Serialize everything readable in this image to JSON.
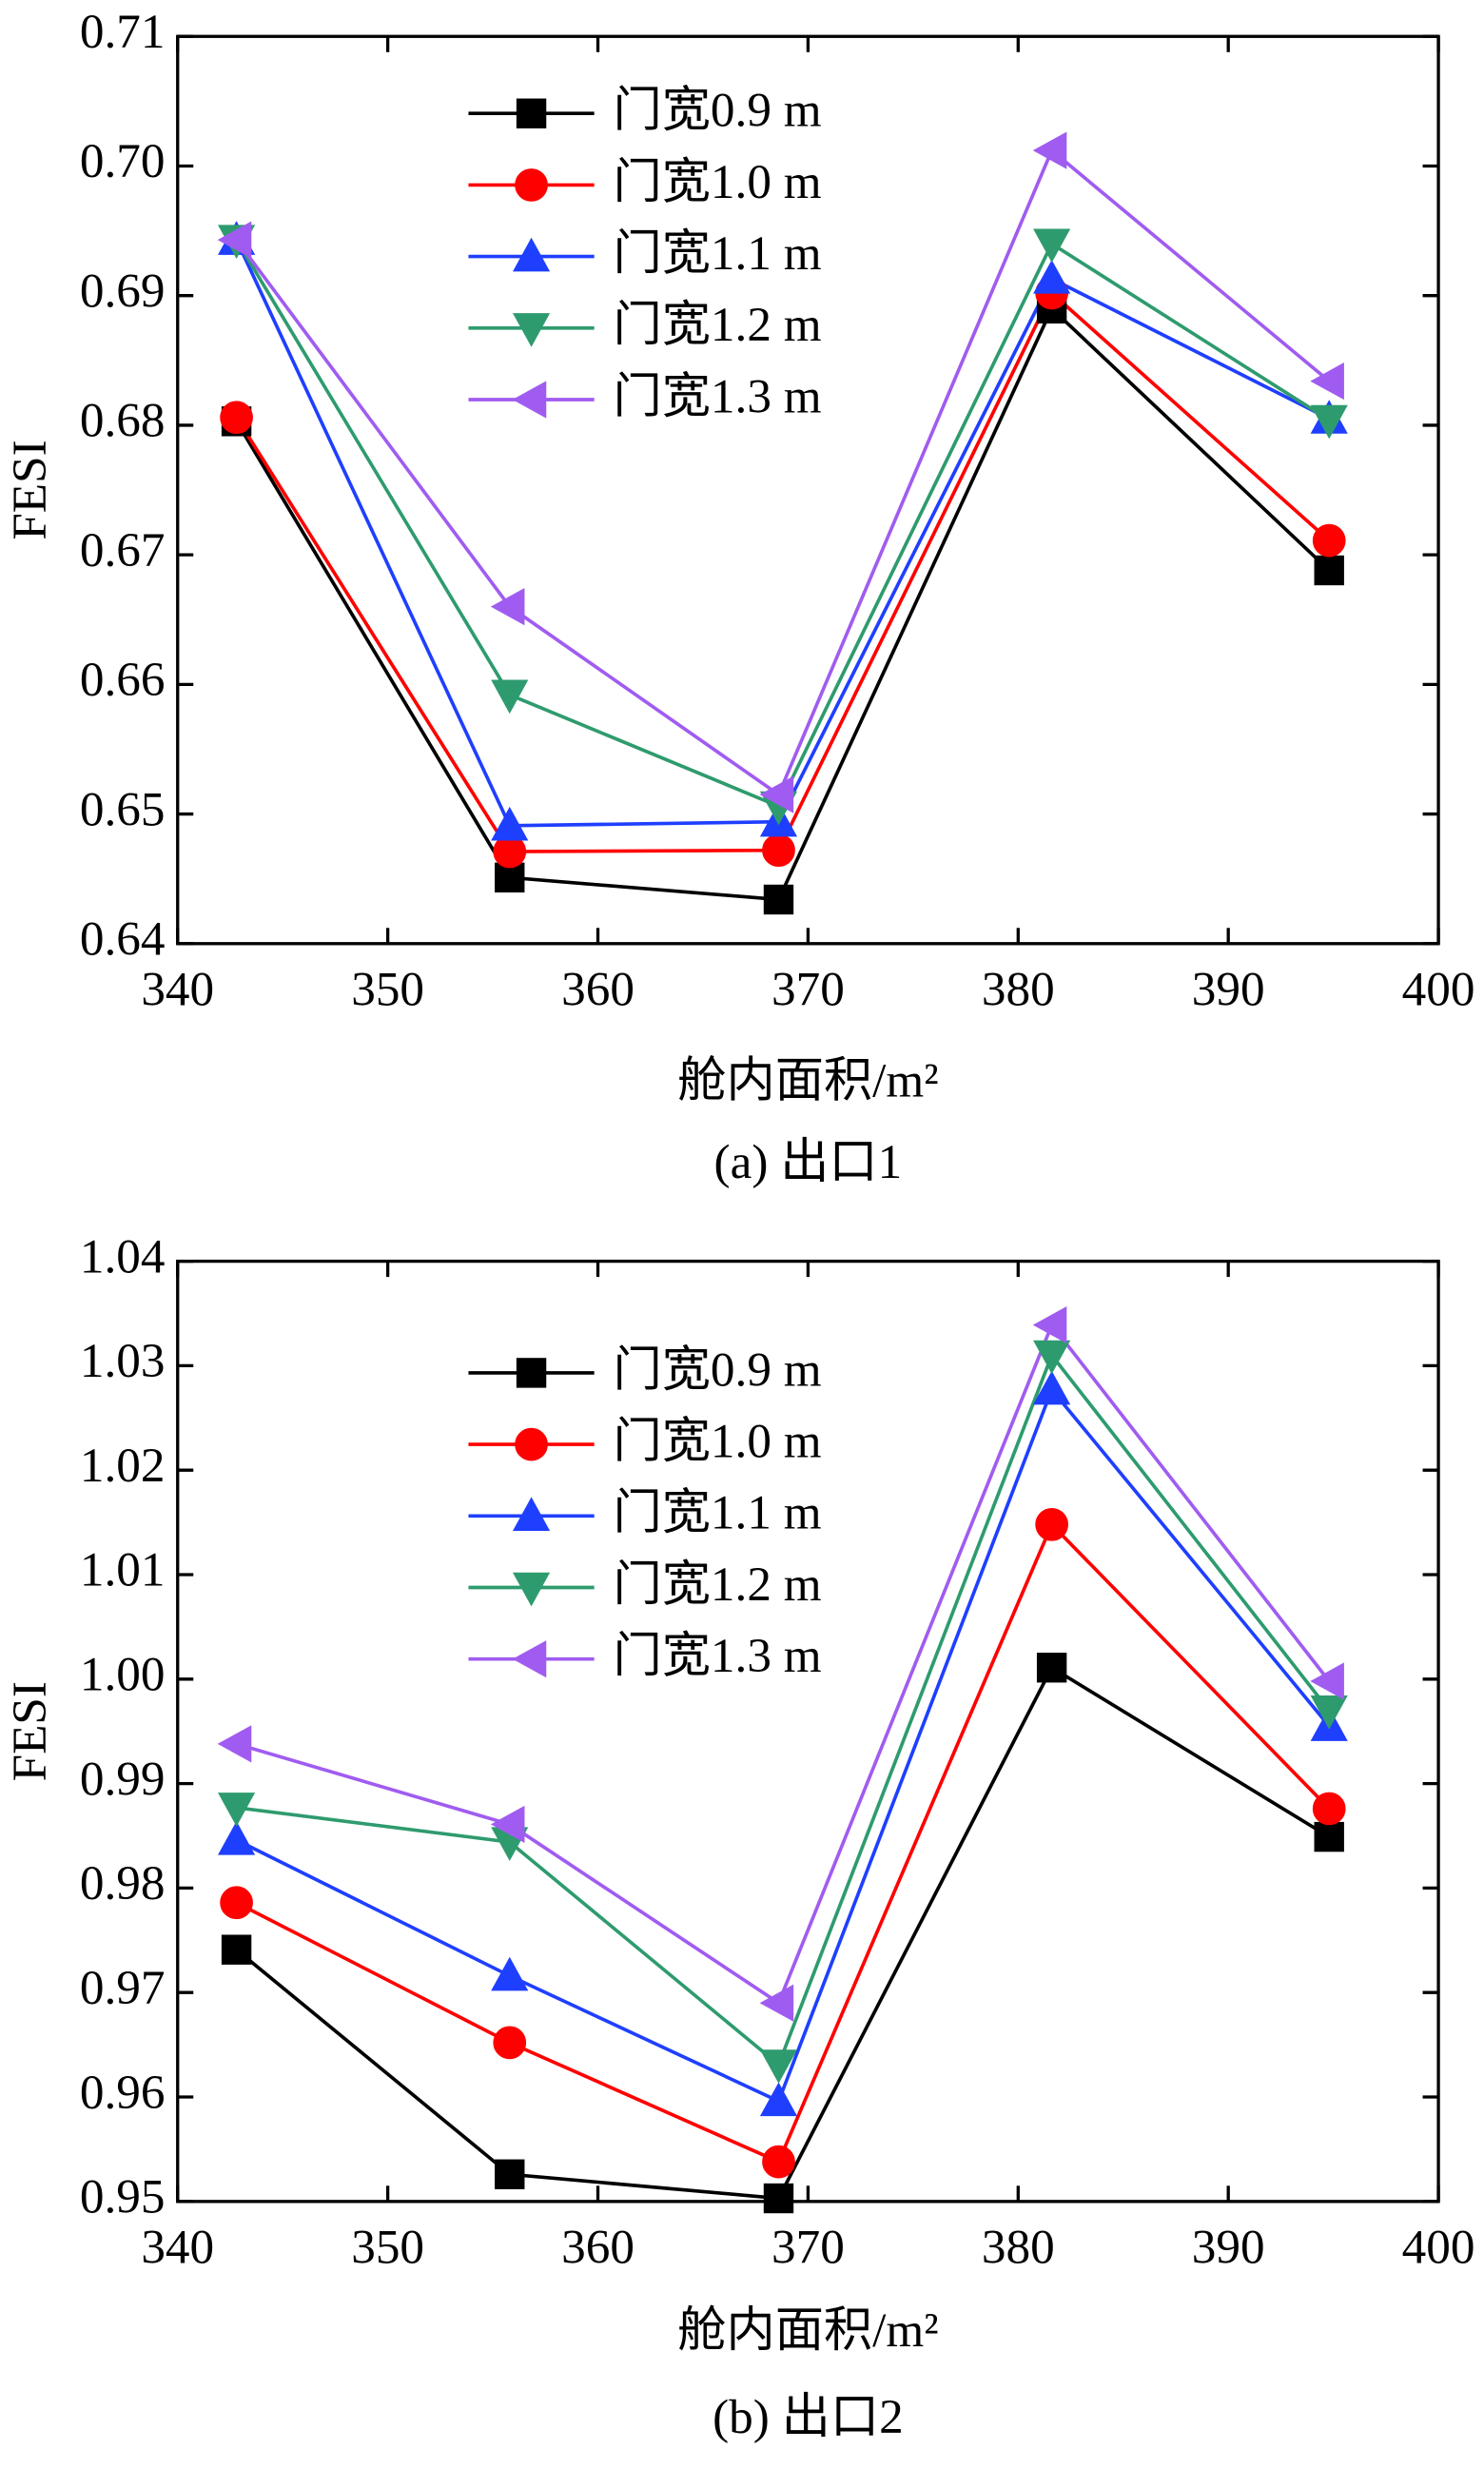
{
  "chart_data": [
    {
      "type": "line",
      "title": "(a) 出口1",
      "x_label": "舱内面积/m²",
      "y_label": "FESI",
      "x": [
        342.8,
        355.8,
        368.6,
        381.6,
        394.8
      ],
      "xlim": [
        340,
        400
      ],
      "xticks": [
        340,
        350,
        360,
        370,
        380,
        390,
        400
      ],
      "ylim": [
        0.64,
        0.71
      ],
      "yticks": [
        0.64,
        0.65,
        0.66,
        0.67,
        0.68,
        0.69,
        {
          "value": 0.7,
          "label": "0.70"
        },
        0.71
      ],
      "legend": "upper left",
      "series": [
        {
          "name": "门宽0.9 m",
          "color": "#000000",
          "marker": "square",
          "values": [
            0.6803,
            0.6451,
            0.6434,
            0.689,
            0.6688
          ]
        },
        {
          "name": "门宽1.0 m",
          "color": "#ff0000",
          "marker": "circle",
          "values": [
            0.6806,
            0.6471,
            0.6472,
            0.6902,
            0.6711
          ]
        },
        {
          "name": "门宽1.1 m",
          "color": "#1f3fff",
          "marker": "triangle-up",
          "values": [
            0.6943,
            0.6491,
            0.6494,
            0.6913,
            0.6805
          ]
        },
        {
          "name": "门宽1.2 m",
          "color": "#2e9b6e",
          "marker": "triangle-down",
          "values": [
            0.6943,
            0.6592,
            0.6506,
            0.694,
            0.6804
          ]
        },
        {
          "name": "门宽1.3 m",
          "color": "#a05cf0",
          "marker": "triangle-left",
          "values": [
            0.6943,
            0.666,
            0.6515,
            0.7012,
            0.6834
          ]
        }
      ]
    },
    {
      "type": "line",
      "title": "(b) 出口2",
      "x_label": "舱内面积/m²",
      "y_label": "FESI",
      "x": [
        342.8,
        355.8,
        368.6,
        381.6,
        394.8
      ],
      "xlim": [
        340,
        400
      ],
      "xticks": [
        340,
        350,
        360,
        370,
        380,
        390,
        400
      ],
      "ylim": [
        0.95,
        1.04
      ],
      "yticks": [
        0.95,
        0.96,
        0.97,
        0.98,
        0.99,
        {
          "value": 1,
          "label": "1.00"
        },
        1.01,
        1.02,
        1.03,
        1.04
      ],
      "legend": "upper left",
      "series": [
        {
          "name": "门宽0.9 m",
          "color": "#000000",
          "marker": "square",
          "values": [
            0.9741,
            0.9526,
            0.9503,
            1.0011,
            0.9849
          ]
        },
        {
          "name": "门宽1.0 m",
          "color": "#ff0000",
          "marker": "circle",
          "values": [
            0.9786,
            0.9652,
            0.9538,
            1.0148,
            0.9876
          ]
        },
        {
          "name": "门宽1.1 m",
          "color": "#1f3fff",
          "marker": "triangle-up",
          "values": [
            0.9846,
            0.9716,
            0.9596,
            1.0277,
            0.9955
          ]
        },
        {
          "name": "门宽1.2 m",
          "color": "#2e9b6e",
          "marker": "triangle-down",
          "values": [
            0.9877,
            0.9844,
            0.9631,
            1.031,
            0.997
          ]
        },
        {
          "name": "门宽1.3 m",
          "color": "#a05cf0",
          "marker": "triangle-left",
          "values": [
            0.9938,
            0.9861,
            0.969,
            1.0339,
            0.9998
          ]
        }
      ]
    }
  ]
}
